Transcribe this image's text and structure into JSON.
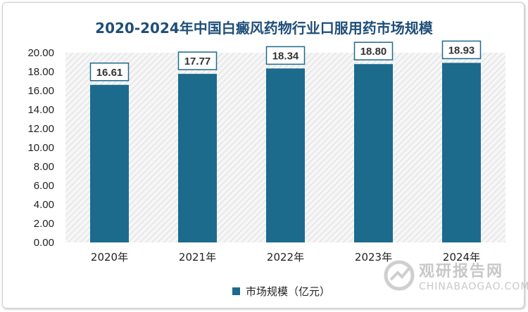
{
  "chart_data": {
    "type": "bar",
    "title": "2020-2024年中国白癜风药物行业口服用药市场规模",
    "categories": [
      "2020年",
      "2021年",
      "2022年",
      "2023年",
      "2024年"
    ],
    "series": [
      {
        "name": "市场规模（亿元）",
        "values": [
          16.61,
          17.77,
          18.34,
          18.8,
          18.93
        ]
      }
    ],
    "data_labels": [
      "16.61",
      "17.77",
      "18.34",
      "18.80",
      "18.93"
    ],
    "y_ticks": [
      "0.00",
      "2.00",
      "4.00",
      "6.00",
      "8.00",
      "10.00",
      "12.00",
      "14.00",
      "16.00",
      "18.00",
      "20.00"
    ],
    "ylim": [
      0,
      20
    ],
    "xlabel": "",
    "ylabel": "",
    "grid": false,
    "legend_position": "bottom",
    "bar_color": "#1c6a8c",
    "plot_background": "hatched-light-gray"
  },
  "watermark": {
    "name_cn": "观研报告网",
    "url": "CHINABAOGAO.COM"
  }
}
